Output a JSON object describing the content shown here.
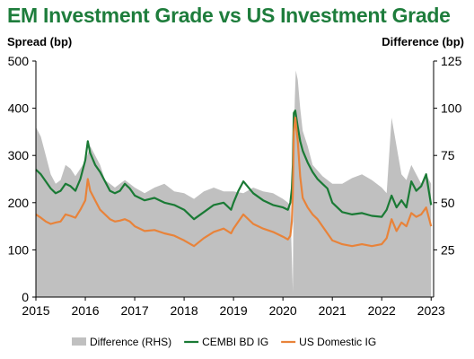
{
  "title": "EM Investment Grade vs US Investment Grade",
  "chart_data": {
    "type": "line",
    "title": "EM Investment Grade vs US Investment Grade",
    "ylabel": "Spread (bp)",
    "y2label": "Difference (bp)",
    "ylim": [
      0,
      500
    ],
    "y2lim": [
      0,
      125
    ],
    "yticks": [
      0,
      100,
      200,
      300,
      400,
      500
    ],
    "y2ticks": [
      25,
      50,
      75,
      100,
      125
    ],
    "xlim": [
      2015,
      2023.05
    ],
    "xticks": [
      2015,
      2016,
      2017,
      2018,
      2019,
      2020,
      2021,
      2022,
      2023
    ],
    "xtick_labels": [
      "2015",
      "2016",
      "2017",
      "2018",
      "2019",
      "2020",
      "2021",
      "2022",
      "2023"
    ],
    "legend_position": "bottom",
    "series": [
      {
        "name": "Difference (RHS)",
        "type": "area",
        "axis": "right",
        "color": "#c0c0c0",
        "x": [
          2015.0,
          2015.1,
          2015.2,
          2015.3,
          2015.4,
          2015.5,
          2015.6,
          2015.7,
          2015.8,
          2015.9,
          2016.0,
          2016.1,
          2016.2,
          2016.3,
          2016.4,
          2016.5,
          2016.6,
          2016.7,
          2016.8,
          2016.9,
          2017.0,
          2017.2,
          2017.4,
          2017.6,
          2017.8,
          2018.0,
          2018.2,
          2018.4,
          2018.6,
          2018.8,
          2019.0,
          2019.2,
          2019.4,
          2019.6,
          2019.8,
          2020.0,
          2020.1,
          2020.15,
          2020.2,
          2020.22,
          2020.24,
          2020.26,
          2020.3,
          2020.35,
          2020.4,
          2020.5,
          2020.6,
          2020.8,
          2021.0,
          2021.2,
          2021.4,
          2021.6,
          2021.8,
          2022.0,
          2022.1,
          2022.2,
          2022.3,
          2022.4,
          2022.5,
          2022.6,
          2022.7,
          2022.8,
          2022.9,
          2023.0
        ],
        "values": [
          90,
          85,
          75,
          65,
          60,
          62,
          70,
          68,
          64,
          68,
          72,
          80,
          75,
          70,
          62,
          60,
          58,
          60,
          62,
          60,
          58,
          55,
          58,
          60,
          56,
          55,
          52,
          56,
          58,
          56,
          56,
          55,
          58,
          56,
          55,
          52,
          50,
          48,
          3,
          80,
          105,
          120,
          115,
          100,
          88,
          80,
          70,
          64,
          60,
          60,
          63,
          65,
          62,
          58,
          55,
          95,
          80,
          65,
          62,
          70,
          65,
          60,
          65,
          60
        ]
      },
      {
        "name": "CEMBI BD IG",
        "type": "line",
        "axis": "left",
        "color": "#1a7a35",
        "x": [
          2015.0,
          2015.1,
          2015.2,
          2015.3,
          2015.4,
          2015.5,
          2015.6,
          2015.7,
          2015.8,
          2015.9,
          2016.0,
          2016.05,
          2016.1,
          2016.2,
          2016.3,
          2016.4,
          2016.5,
          2016.6,
          2016.7,
          2016.8,
          2016.9,
          2017.0,
          2017.2,
          2017.4,
          2017.6,
          2017.8,
          2018.0,
          2018.2,
          2018.4,
          2018.6,
          2018.8,
          2018.95,
          2019.0,
          2019.1,
          2019.2,
          2019.4,
          2019.6,
          2019.8,
          2020.0,
          2020.1,
          2020.15,
          2020.18,
          2020.2,
          2020.22,
          2020.25,
          2020.3,
          2020.35,
          2020.4,
          2020.5,
          2020.6,
          2020.7,
          2020.8,
          2020.9,
          2021.0,
          2021.2,
          2021.4,
          2021.6,
          2021.8,
          2022.0,
          2022.1,
          2022.2,
          2022.3,
          2022.4,
          2022.5,
          2022.6,
          2022.7,
          2022.8,
          2022.9,
          2023.0
        ],
        "values": [
          270,
          260,
          245,
          230,
          220,
          225,
          240,
          235,
          225,
          250,
          290,
          330,
          305,
          280,
          265,
          245,
          225,
          220,
          225,
          240,
          230,
          215,
          205,
          210,
          200,
          195,
          185,
          165,
          180,
          195,
          200,
          185,
          200,
          225,
          245,
          220,
          205,
          195,
          190,
          185,
          200,
          230,
          280,
          390,
          395,
          360,
          330,
          310,
          285,
          265,
          250,
          240,
          230,
          200,
          180,
          175,
          178,
          172,
          170,
          185,
          215,
          190,
          205,
          190,
          245,
          225,
          235,
          260,
          195
        ]
      },
      {
        "name": "US Domestic IG",
        "type": "line",
        "axis": "left",
        "color": "#e8833a",
        "x": [
          2015.0,
          2015.1,
          2015.2,
          2015.3,
          2015.4,
          2015.5,
          2015.6,
          2015.7,
          2015.8,
          2015.9,
          2016.0,
          2016.05,
          2016.1,
          2016.2,
          2016.3,
          2016.4,
          2016.5,
          2016.6,
          2016.7,
          2016.8,
          2016.9,
          2017.0,
          2017.2,
          2017.4,
          2017.6,
          2017.8,
          2018.0,
          2018.2,
          2018.4,
          2018.6,
          2018.8,
          2018.95,
          2019.0,
          2019.1,
          2019.2,
          2019.4,
          2019.6,
          2019.8,
          2020.0,
          2020.1,
          2020.15,
          2020.18,
          2020.2,
          2020.22,
          2020.25,
          2020.3,
          2020.35,
          2020.4,
          2020.5,
          2020.6,
          2020.7,
          2020.8,
          2020.9,
          2021.0,
          2021.2,
          2021.4,
          2021.6,
          2021.8,
          2022.0,
          2022.1,
          2022.2,
          2022.3,
          2022.4,
          2022.5,
          2022.6,
          2022.7,
          2022.8,
          2022.9,
          2023.0
        ],
        "values": [
          175,
          168,
          160,
          155,
          158,
          160,
          175,
          172,
          168,
          185,
          205,
          250,
          225,
          205,
          185,
          175,
          165,
          160,
          162,
          165,
          160,
          150,
          140,
          142,
          135,
          130,
          120,
          108,
          125,
          138,
          145,
          135,
          145,
          160,
          175,
          155,
          145,
          138,
          128,
          122,
          130,
          160,
          220,
          350,
          380,
          330,
          255,
          210,
          190,
          175,
          165,
          150,
          135,
          120,
          112,
          108,
          112,
          108,
          112,
          125,
          165,
          140,
          158,
          150,
          178,
          170,
          175,
          190,
          150
        ]
      }
    ]
  }
}
